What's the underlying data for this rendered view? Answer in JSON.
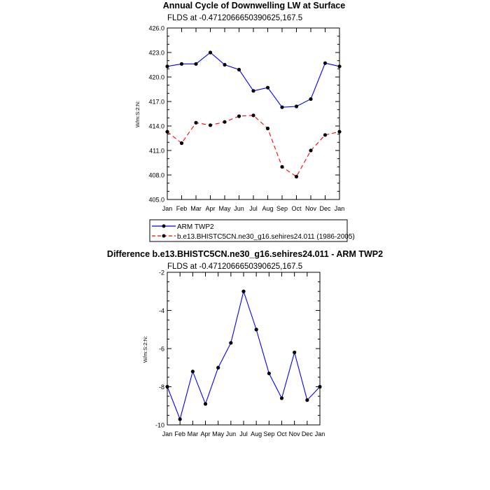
{
  "chart_data": [
    {
      "type": "line",
      "title": "Annual Cycle of Downwelling LW at Surface",
      "subtitle": "FLDS at -0.4712066650390625,167.5",
      "ylabel": "W/m:S:2:N:",
      "xlabel": "",
      "categories": [
        "Jan",
        "Feb",
        "Mar",
        "Apr",
        "May",
        "Jun",
        "Jul",
        "Aug",
        "Sep",
        "Oct",
        "Nov",
        "Dec",
        "Jan"
      ],
      "ylim": [
        405.0,
        426.0
      ],
      "yticks": [
        "405.0",
        "408.0",
        "411.0",
        "414.0",
        "417.0",
        "420.0",
        "423.0",
        "426.0"
      ],
      "series": [
        {
          "name": "ARM TWP2",
          "color": "#0000ff",
          "dash": "solid",
          "values": [
            421.3,
            421.6,
            421.6,
            423.0,
            421.5,
            420.9,
            418.3,
            418.7,
            416.3,
            416.4,
            417.3,
            421.7,
            421.3
          ]
        },
        {
          "name": "b.e13.BHISTC5CN.ne30_g16.sehires24.011 (1986-2005)",
          "color": "#ff0000",
          "dash": "dashed",
          "values": [
            413.3,
            411.9,
            414.4,
            414.1,
            414.5,
            415.2,
            415.3,
            413.7,
            409.0,
            407.8,
            411.0,
            412.9,
            413.3
          ]
        }
      ],
      "legend": "bottom"
    },
    {
      "type": "line",
      "title": "Difference b.e13.BHISTC5CN.ne30_g16.sehires24.011 - ARM TWP2",
      "subtitle": "FLDS at -0.4712066650390625,167.5",
      "ylabel": "W/m:S:2:N:",
      "xlabel": "",
      "categories": [
        "Jan",
        "Feb",
        "Mar",
        "Apr",
        "May",
        "Jun",
        "Jul",
        "Aug",
        "Sep",
        "Oct",
        "Nov",
        "Dec",
        "Jan"
      ],
      "ylim": [
        -10,
        -2
      ],
      "yticks": [
        "-10",
        "-8",
        "-6",
        "-4",
        "-2"
      ],
      "series": [
        {
          "color": "#0000ff",
          "dash": "solid",
          "values": [
            -8.0,
            -9.7,
            -7.2,
            -8.9,
            -7.0,
            -5.7,
            -3.0,
            -5.0,
            -7.3,
            -8.6,
            -6.2,
            -8.7,
            -8.0
          ]
        }
      ]
    }
  ]
}
